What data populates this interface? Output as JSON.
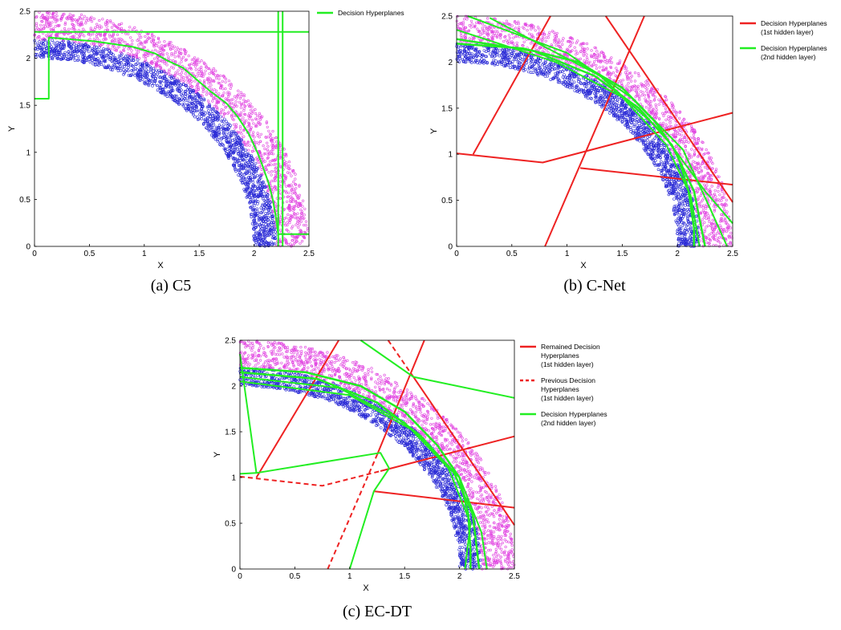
{
  "chart_data": [
    {
      "type": "scatter",
      "xlabel": "X",
      "ylabel": "Y",
      "xlim": [
        0,
        2.5
      ],
      "ylim": [
        0,
        2.5
      ],
      "xticks": [
        "0",
        "0.5",
        "1",
        "1.5",
        "2",
        "2.5"
      ],
      "yticks": [
        "0",
        "0.5",
        "1",
        "1.5",
        "2",
        "2.5"
      ],
      "caption": "(a) C5",
      "series_colors": {
        "inner": "#2b2bd6",
        "outer": "#e040e0",
        "hyperplane": "#22ee22"
      },
      "scatter_bands": {
        "inner": [
          2.0,
          2.2
        ],
        "outer": [
          2.2,
          2.5
        ]
      },
      "legend": [
        {
          "label": "Decision Hyperplanes",
          "color": "#22ee22",
          "dash": false
        }
      ],
      "lines": [
        {
          "color": "#22ee22",
          "width": 2,
          "points": [
            [
              0,
              1.57
            ],
            [
              0.13,
              1.57
            ],
            [
              0.13,
              2.22
            ],
            [
              0.55,
              2.18
            ],
            [
              0.9,
              2.12
            ],
            [
              1.1,
              2.05
            ],
            [
              1.2,
              1.98
            ],
            [
              1.35,
              1.9
            ],
            [
              1.45,
              1.8
            ],
            [
              1.6,
              1.65
            ],
            [
              1.75,
              1.52
            ],
            [
              1.85,
              1.38
            ],
            [
              1.95,
              1.2
            ],
            [
              2.03,
              1.0
            ],
            [
              2.08,
              0.85
            ],
            [
              2.13,
              0.68
            ],
            [
              2.17,
              0.5
            ],
            [
              2.2,
              0.3
            ],
            [
              2.22,
              0.13
            ],
            [
              2.5,
              0.13
            ]
          ]
        },
        {
          "color": "#22ee22",
          "width": 2,
          "points": [
            [
              0,
              2.28
            ],
            [
              2.5,
              2.28
            ]
          ]
        },
        {
          "color": "#22ee22",
          "width": 2,
          "points": [
            [
              2.22,
              2.5
            ],
            [
              2.22,
              0
            ]
          ]
        },
        {
          "color": "#22ee22",
          "width": 2,
          "points": [
            [
              2.26,
              2.5
            ],
            [
              2.26,
              0
            ]
          ]
        }
      ]
    },
    {
      "type": "scatter",
      "xlabel": "X",
      "ylabel": "Y",
      "xlim": [
        0,
        2.5
      ],
      "ylim": [
        0,
        2.5
      ],
      "xticks": [
        "0",
        "0.5",
        "1",
        "1.5",
        "2",
        "2.5"
      ],
      "yticks": [
        "0",
        "0.5",
        "1",
        "1.5",
        "2",
        "2.5"
      ],
      "caption": "(b) C-Net",
      "series_colors": {
        "inner": "#2b2bd6",
        "outer": "#e040e0",
        "hyperplane": "#22ee22"
      },
      "scatter_bands": {
        "inner": [
          2.0,
          2.2
        ],
        "outer": [
          2.2,
          2.5
        ]
      },
      "legend": [
        {
          "label": "Decision Hyperplanes",
          "sub": "(1st hidden layer)",
          "color": "#ee2222",
          "dash": false
        },
        {
          "label": "Decision Hyperplanes",
          "sub": "(2nd hidden layer)",
          "color": "#22ee22",
          "dash": false
        }
      ],
      "lines": [
        {
          "color": "#ee2222",
          "width": 2,
          "points": [
            [
              0.15,
              1.0
            ],
            [
              0.85,
              2.5
            ]
          ]
        },
        {
          "color": "#ee2222",
          "width": 2,
          "points": [
            [
              0,
              1.01
            ],
            [
              0.78,
              0.91
            ],
            [
              2.5,
              1.45
            ]
          ]
        },
        {
          "color": "#ee2222",
          "width": 2,
          "points": [
            [
              0.8,
              0
            ],
            [
              1.7,
              2.5
            ]
          ]
        },
        {
          "color": "#ee2222",
          "width": 2,
          "points": [
            [
              1.35,
              2.5
            ],
            [
              2.5,
              0.48
            ]
          ]
        },
        {
          "color": "#ee2222",
          "width": 2,
          "points": [
            [
              1.12,
              0.85
            ],
            [
              2.5,
              0.67
            ]
          ]
        },
        {
          "color": "#22ee22",
          "width": 2.5,
          "points": [
            [
              0,
              2.2
            ],
            [
              0.6,
              2.15
            ],
            [
              1.1,
              2.0
            ],
            [
              1.5,
              1.72
            ],
            [
              1.8,
              1.35
            ],
            [
              2.0,
              1.0
            ],
            [
              2.1,
              0.6
            ],
            [
              2.15,
              0.2
            ],
            [
              2.15,
              0
            ]
          ]
        },
        {
          "color": "#22ee22",
          "width": 2.5,
          "points": [
            [
              0,
              2.25
            ],
            [
              0.7,
              2.12
            ],
            [
              1.25,
              1.85
            ],
            [
              1.65,
              1.5
            ],
            [
              1.95,
              1.1
            ],
            [
              2.15,
              0.6
            ],
            [
              2.25,
              0
            ]
          ]
        },
        {
          "color": "#22ee22",
          "width": 2,
          "points": [
            [
              0,
              2.35
            ],
            [
              0.9,
              2.0
            ],
            [
              1.5,
              1.62
            ],
            [
              1.9,
              1.1
            ],
            [
              2.12,
              0.55
            ],
            [
              2.2,
              0
            ]
          ]
        },
        {
          "color": "#22ee22",
          "width": 2,
          "points": [
            [
              0.1,
              2.5
            ],
            [
              1.0,
              2.1
            ],
            [
              1.6,
              1.6
            ],
            [
              2.05,
              1.05
            ],
            [
              2.3,
              0.4
            ],
            [
              2.45,
              0
            ]
          ]
        },
        {
          "color": "#22ee22",
          "width": 2,
          "points": [
            [
              0.3,
              2.48
            ],
            [
              1.3,
              1.85
            ],
            [
              1.85,
              1.25
            ],
            [
              2.25,
              0.6
            ],
            [
              2.5,
              0.25
            ]
          ]
        }
      ]
    },
    {
      "type": "scatter",
      "xlabel": "X",
      "ylabel": "Y",
      "xlim": [
        0,
        2.5
      ],
      "ylim": [
        0,
        2.5
      ],
      "xticks": [
        "0",
        "0.5",
        "1",
        "1.5",
        "2",
        "2.5"
      ],
      "yticks": [
        "0",
        "0.5",
        "1",
        "1.5",
        "2",
        "2.5"
      ],
      "caption": "(c) EC-DT",
      "series_colors": {
        "inner": "#2b2bd6",
        "outer": "#e040e0",
        "hyperplane": "#22ee22"
      },
      "scatter_bands": {
        "inner": [
          2.0,
          2.2
        ],
        "outer": [
          2.2,
          2.5
        ]
      },
      "legend": [
        {
          "label": "Remained Decision",
          "lines2": [
            "Hyperplanes",
            "(1st hidden layer)"
          ],
          "color": "#ee2222",
          "dash": false
        },
        {
          "label": "Previous Decision",
          "lines2": [
            "Hyperplanes",
            "(1st hidden layer)"
          ],
          "color": "#ee2222",
          "dash": true
        },
        {
          "label": "Decision Hyperplanes",
          "lines2": [
            "(2nd hidden layer)"
          ],
          "color": "#22ee22",
          "dash": false
        }
      ],
      "lines": [
        {
          "color": "#ee2222",
          "width": 2,
          "points": [
            [
              0.15,
              1.0
            ],
            [
              0.9,
              2.5
            ]
          ]
        },
        {
          "color": "#ee2222",
          "width": 2,
          "dash": true,
          "points": [
            [
              0,
              1.01
            ],
            [
              0.75,
              0.91
            ],
            [
              1.28,
              1.07
            ]
          ]
        },
        {
          "color": "#ee2222",
          "width": 2,
          "points": [
            [
              1.28,
              1.07
            ],
            [
              2.5,
              1.45
            ]
          ]
        },
        {
          "color": "#ee2222",
          "width": 2,
          "dash": true,
          "points": [
            [
              0.8,
              0
            ],
            [
              1.25,
              1.25
            ]
          ]
        },
        {
          "color": "#ee2222",
          "width": 2,
          "points": [
            [
              1.25,
              1.25
            ],
            [
              1.68,
              2.5
            ]
          ]
        },
        {
          "color": "#ee2222",
          "width": 2,
          "dash": true,
          "points": [
            [
              1.35,
              2.5
            ],
            [
              1.58,
              2.1
            ]
          ]
        },
        {
          "color": "#ee2222",
          "width": 2,
          "points": [
            [
              1.58,
              2.1
            ],
            [
              2.5,
              0.48
            ]
          ]
        },
        {
          "color": "#ee2222",
          "width": 2,
          "points": [
            [
              1.22,
              0.85
            ],
            [
              2.5,
              0.67
            ]
          ]
        },
        {
          "color": "#22ee22",
          "width": 2,
          "points": [
            [
              0,
              2.35
            ],
            [
              0.15,
              1.05
            ],
            [
              0,
              1.04
            ]
          ]
        },
        {
          "color": "#22ee22",
          "width": 2,
          "points": [
            [
              0.15,
              1.05
            ],
            [
              1.28,
              1.27
            ],
            [
              1.36,
              1.1
            ],
            [
              1.22,
              0.85
            ],
            [
              1.0,
              0
            ]
          ]
        },
        {
          "color": "#22ee22",
          "width": 2,
          "points": [
            [
              1.1,
              2.5
            ],
            [
              1.58,
              2.1
            ],
            [
              2.5,
              1.87
            ]
          ]
        },
        {
          "color": "#22ee22",
          "width": 2.5,
          "points": [
            [
              0,
              2.2
            ],
            [
              0.6,
              2.15
            ],
            [
              1.1,
              2.0
            ],
            [
              1.5,
              1.72
            ],
            [
              1.8,
              1.35
            ],
            [
              2.0,
              1.0
            ],
            [
              2.08,
              0.6
            ],
            [
              2.1,
              0.2
            ],
            [
              2.1,
              0
            ]
          ]
        },
        {
          "color": "#22ee22",
          "width": 2.5,
          "points": [
            [
              0,
              2.15
            ],
            [
              0.7,
              2.08
            ],
            [
              1.25,
              1.82
            ],
            [
              1.65,
              1.45
            ],
            [
              1.95,
              1.05
            ],
            [
              2.12,
              0.6
            ],
            [
              2.18,
              0
            ]
          ]
        },
        {
          "color": "#22ee22",
          "width": 2,
          "points": [
            [
              0,
              2.1
            ],
            [
              0.9,
              1.98
            ],
            [
              1.5,
              1.6
            ],
            [
              1.9,
              1.1
            ],
            [
              2.1,
              0.5
            ],
            [
              2.05,
              0
            ]
          ]
        },
        {
          "color": "#22ee22",
          "width": 2,
          "points": [
            [
              0,
              2.05
            ],
            [
              1.0,
              1.9
            ],
            [
              1.6,
              1.5
            ],
            [
              2.0,
              1.0
            ],
            [
              2.2,
              0.4
            ],
            [
              2.25,
              0
            ]
          ]
        }
      ]
    }
  ]
}
